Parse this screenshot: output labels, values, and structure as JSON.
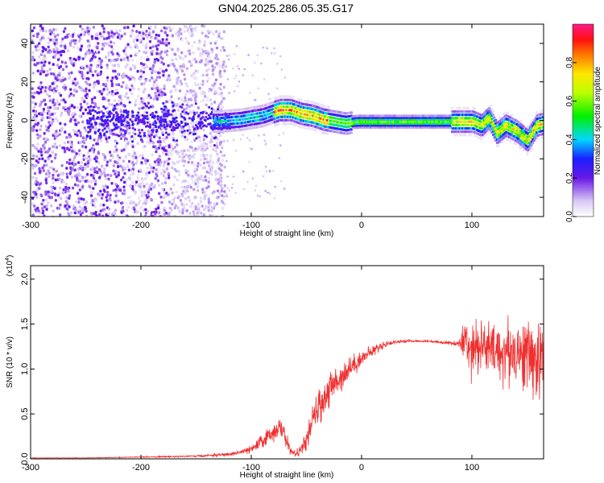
{
  "title": "GN04.2025.286.05.35.G17",
  "chart_data": [
    {
      "type": "heatmap",
      "xlabel": "Height of straight line (km)",
      "ylabel": "Frequency (Hz)",
      "xlim": [
        -300,
        165
      ],
      "ylim": [
        -50,
        50
      ],
      "xticks": [
        -300,
        -200,
        -100,
        0,
        100
      ],
      "yticks": [
        -40,
        -20,
        0,
        20,
        40
      ],
      "colorbar": {
        "label": "Normalized spectral amplitude",
        "range": [
          0,
          1
        ],
        "ticks": [
          "0.0",
          "0.2",
          "0.4",
          "0.6",
          "0.8"
        ]
      },
      "ridge": {
        "x": [
          -130,
          -110,
          -90,
          -75,
          -65,
          -55,
          -45,
          -35,
          -25,
          -15,
          -5,
          5,
          20,
          40,
          60,
          75,
          85,
          95,
          100,
          108,
          115,
          122,
          130,
          140,
          150,
          158,
          165
        ],
        "y": [
          0,
          1,
          3,
          6,
          6,
          4,
          3,
          1,
          0,
          -1,
          0,
          0,
          0,
          0,
          0,
          0,
          0,
          0,
          0,
          -2,
          2,
          -6,
          -2,
          -5,
          -10,
          -2,
          -1
        ]
      }
    },
    {
      "type": "line",
      "xlabel": "Height of straight line (km)",
      "ylabel": "SNR (10 * v/v)",
      "yscale_label": "(x10",
      "yscale_exp": "4",
      "xlim": [
        -300,
        165
      ],
      "ylim": [
        0,
        2.15
      ],
      "xticks": [
        -300,
        -200,
        -100,
        0,
        100
      ],
      "yticks": [
        "0.0",
        "0.5",
        "1.0",
        "1.5",
        "2.0"
      ],
      "color": "#f03030",
      "series": [
        {
          "x": [
            -300,
            -250,
            -200,
            -150,
            -120,
            -100,
            -90,
            -80,
            -75,
            -70,
            -65,
            -60,
            -55,
            -50,
            -45,
            -40,
            -30,
            -20,
            -10,
            0,
            10,
            20,
            30,
            40,
            50,
            60,
            70,
            80,
            88,
            95,
            100,
            110,
            120,
            130,
            140,
            150,
            160,
            165
          ],
          "y": [
            0.01,
            0.01,
            0.02,
            0.03,
            0.05,
            0.1,
            0.2,
            0.3,
            0.35,
            0.28,
            0.1,
            0.05,
            0.1,
            0.2,
            0.4,
            0.55,
            0.75,
            0.9,
            1.02,
            1.12,
            1.2,
            1.27,
            1.3,
            1.31,
            1.31,
            1.31,
            1.3,
            1.29,
            1.28,
            1.3,
            1.28,
            1.25,
            1.2,
            1.18,
            1.2,
            1.15,
            1.1,
            1.1
          ],
          "noise": [
            0.003,
            0.003,
            0.005,
            0.01,
            0.02,
            0.04,
            0.08,
            0.1,
            0.1,
            0.1,
            0.05,
            0.03,
            0.06,
            0.1,
            0.15,
            0.18,
            0.2,
            0.16,
            0.12,
            0.08,
            0.06,
            0.04,
            0.02,
            0.015,
            0.01,
            0.01,
            0.015,
            0.02,
            0.03,
            0.35,
            0.3,
            0.3,
            0.3,
            0.35,
            0.35,
            0.4,
            0.45,
            0.35
          ]
        }
      ]
    }
  ]
}
